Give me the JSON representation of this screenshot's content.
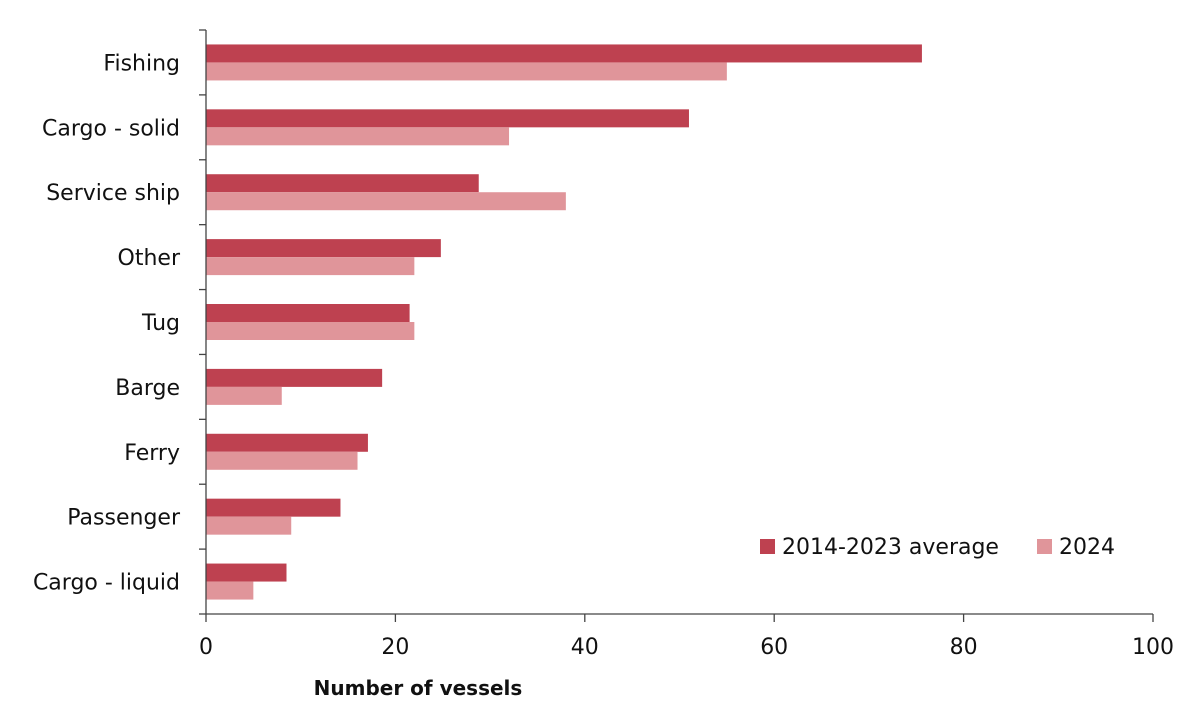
{
  "chart_data": {
    "type": "bar",
    "orientation": "horizontal",
    "categories": [
      "Fishing",
      "Cargo - solid",
      "Service ship",
      "Other",
      "Tug",
      "Barge",
      "Ferry",
      "Passenger",
      "Cargo - liquid"
    ],
    "series": [
      {
        "name": "2014-2023 average",
        "color": "#be4150",
        "values": [
          75.6,
          51.0,
          28.8,
          24.8,
          21.5,
          18.6,
          17.1,
          14.2,
          8.5
        ]
      },
      {
        "name": "2024",
        "color": "#e0959a",
        "values": [
          55,
          32,
          38,
          22,
          22,
          8,
          16,
          9,
          5
        ]
      }
    ],
    "xlabel": "Number of vessels",
    "ylabel": "",
    "xlim": [
      0,
      100
    ],
    "xticks": [
      "0",
      "20",
      "40",
      "60",
      "80",
      "100"
    ],
    "grid": false,
    "legend_position": "bottom-right"
  }
}
